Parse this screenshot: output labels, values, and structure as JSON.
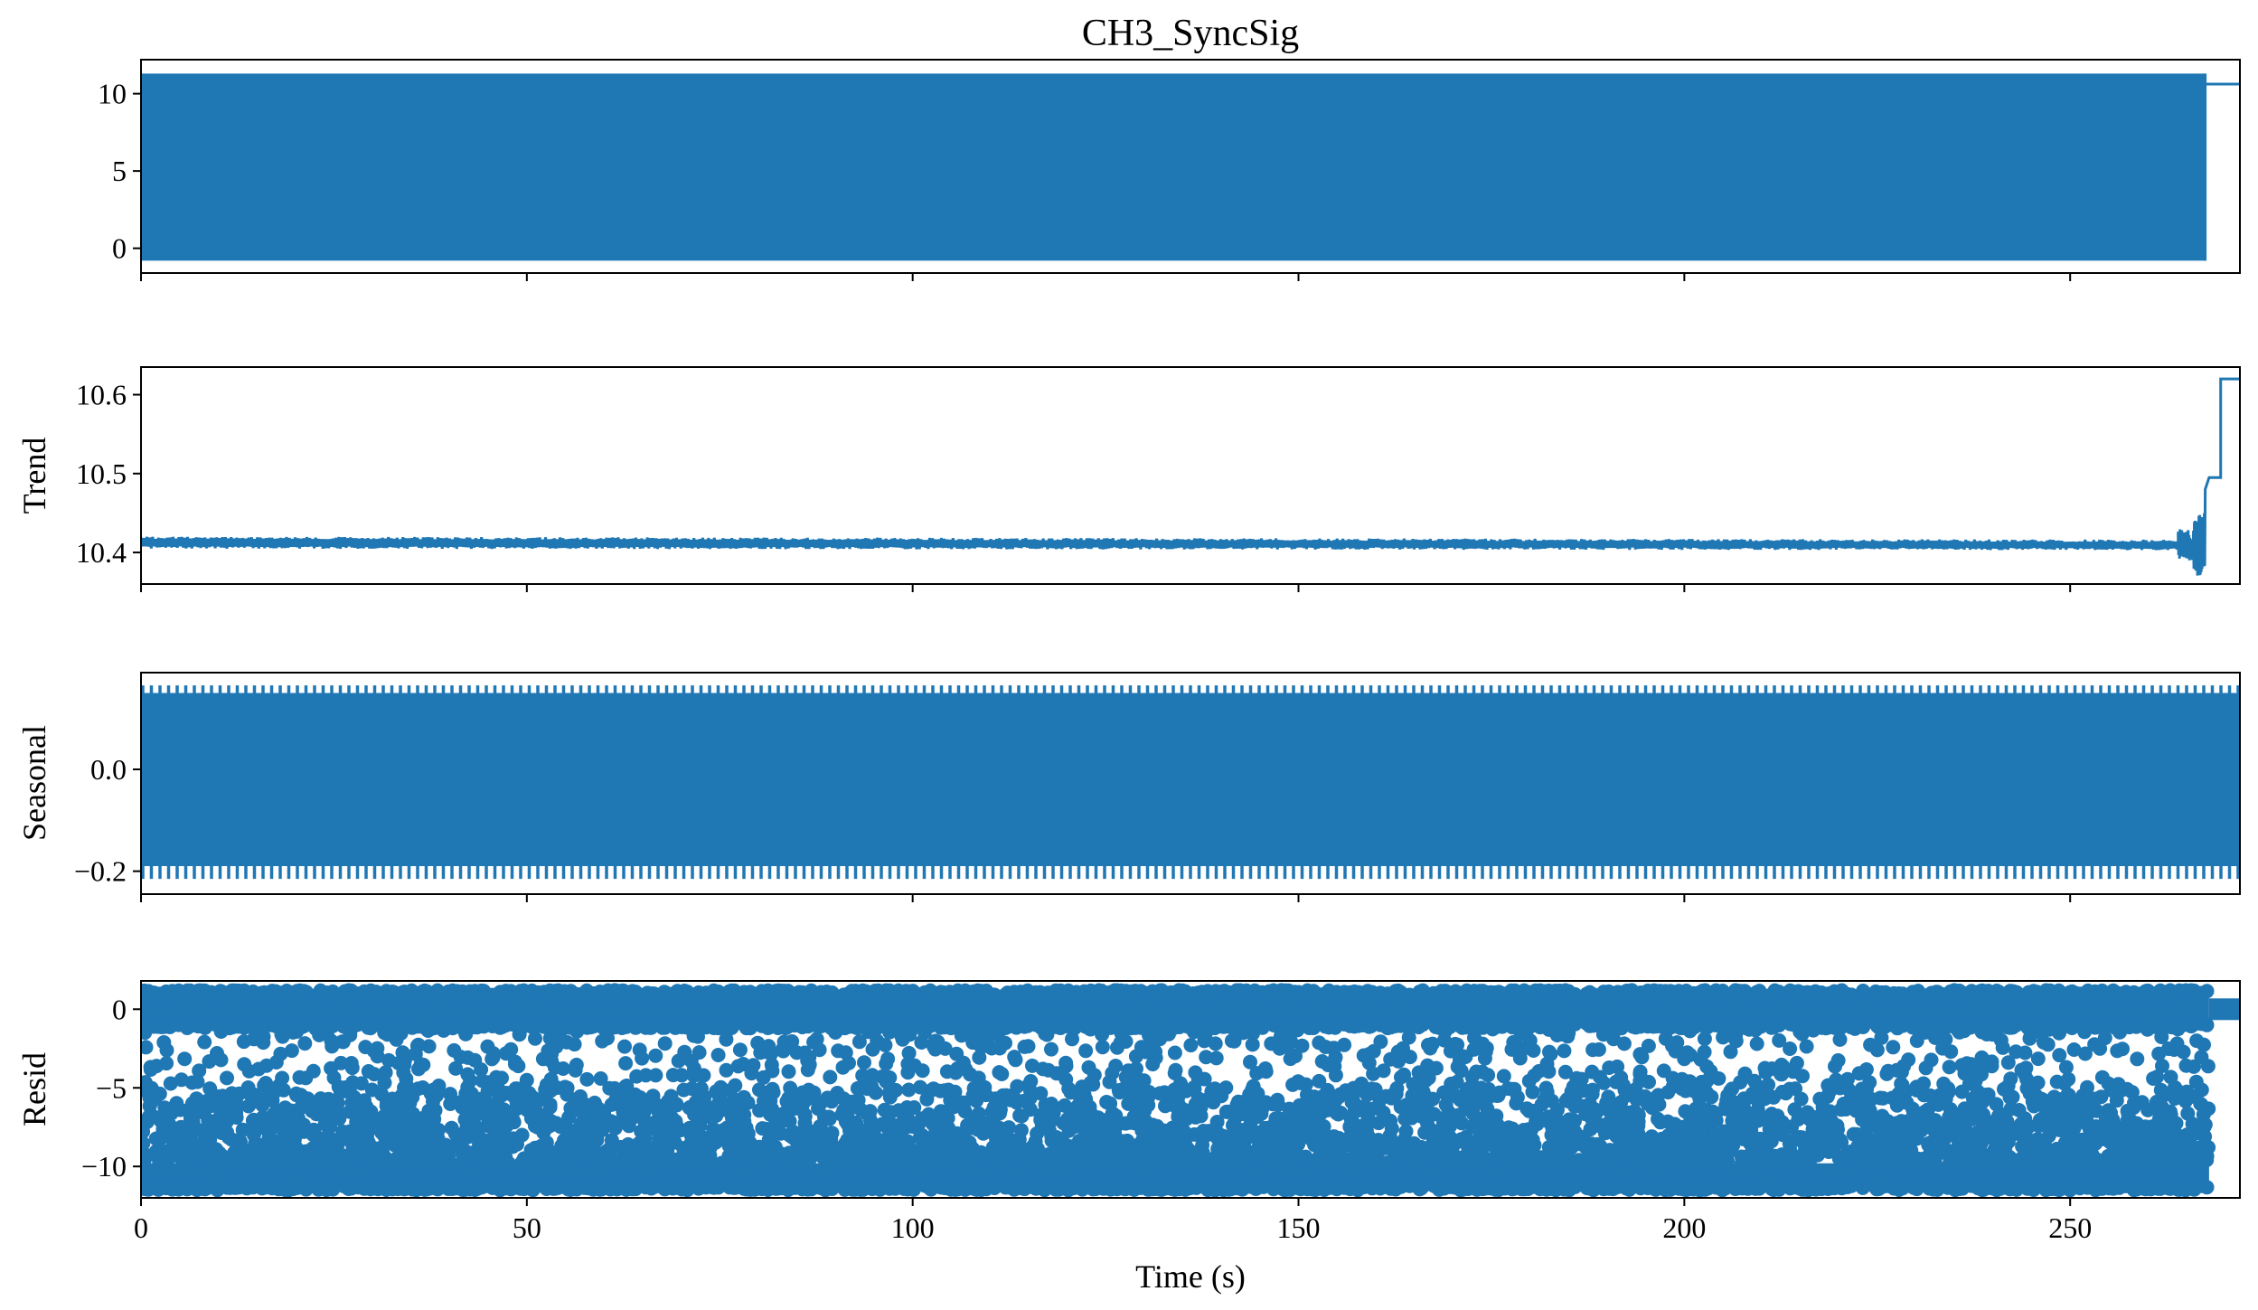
{
  "chart_data": [
    {
      "type": "line",
      "title": "CH3_SyncSig",
      "ylabel": "",
      "xlim": [
        0,
        272
      ],
      "ylim": [
        -1.6,
        12.2
      ],
      "x_ticks": [
        0,
        50,
        100,
        150,
        200,
        250
      ],
      "y_ticks": [
        {
          "value": 10,
          "label": "10"
        },
        {
          "value": 5,
          "label": "5"
        },
        {
          "value": 0,
          "label": "0"
        }
      ],
      "series": [
        {
          "color": "#1f77b4",
          "style": "oscillating band",
          "x_range": [
            0,
            267.5
          ],
          "y_band": [
            -0.8,
            11.3
          ],
          "tail": {
            "x_range": [
              267.5,
              272
            ],
            "value": 10.62
          }
        }
      ]
    },
    {
      "type": "line",
      "ylabel": "Trend",
      "xlim": [
        0,
        272
      ],
      "ylim": [
        10.36,
        10.635
      ],
      "y_ticks": [
        {
          "value": 10.6,
          "label": "10.6"
        },
        {
          "value": 10.5,
          "label": "10.5"
        },
        {
          "value": 10.4,
          "label": "10.4"
        }
      ],
      "series": [
        {
          "color": "#1f77b4",
          "style": "noisy band",
          "x_range": [
            0,
            264
          ],
          "y_band_start": [
            10.405,
            10.42
          ],
          "y_band_end": [
            10.403,
            10.416
          ],
          "end_behavior": [
            {
              "x": 264,
              "y_band": [
                10.39,
                10.43
              ]
            },
            {
              "x": 266,
              "y_band": [
                10.37,
                10.45
              ]
            },
            {
              "x": 267.5,
              "y": 10.48
            },
            {
              "x": 268,
              "y": 10.495
            },
            {
              "x": 269.5,
              "y": 10.62
            },
            {
              "x": 272,
              "y": 10.62
            }
          ]
        }
      ]
    },
    {
      "type": "line",
      "ylabel": "Seasonal",
      "xlim": [
        0,
        272
      ],
      "ylim": [
        -0.245,
        0.19
      ],
      "y_ticks": [
        {
          "value": 0.0,
          "label": "0.0"
        },
        {
          "value": -0.2,
          "label": "−0.2"
        }
      ],
      "series": [
        {
          "color": "#1f77b4",
          "style": "periodic oscillation",
          "x_range": [
            0,
            272
          ],
          "y_band": [
            -0.215,
            0.165
          ],
          "solid_band": [
            -0.19,
            0.15
          ]
        }
      ]
    },
    {
      "type": "scatter",
      "ylabel": "Resid",
      "xlabel": "Time (s)",
      "xlim": [
        0,
        272
      ],
      "ylim": [
        -12,
        1.8
      ],
      "x_ticks": [
        0,
        50,
        100,
        150,
        200,
        250
      ],
      "y_ticks": [
        {
          "value": 0,
          "label": "0"
        },
        {
          "value": -5,
          "label": "−5"
        },
        {
          "value": -10,
          "label": "−10"
        }
      ],
      "series": [
        {
          "color": "#1f77b4",
          "style": "dense dots",
          "clusters": [
            {
              "x_range": [
                0,
                268
              ],
              "y_band": [
                -1.2,
                1.2
              ],
              "density": "solid"
            },
            {
              "x_range": [
                0,
                268
              ],
              "y_band": [
                -11.5,
                -9.8
              ],
              "density": "solid"
            },
            {
              "x_range": [
                0,
                268
              ],
              "y_band": [
                -9.8,
                -5.0
              ],
              "density": "heavy"
            },
            {
              "x_range": [
                0,
                268
              ],
              "y_band": [
                -5.0,
                -1.2
              ],
              "density": "sparse"
            }
          ],
          "tail": {
            "x_range": [
              268,
              272
            ],
            "value": 0
          }
        }
      ]
    }
  ]
}
